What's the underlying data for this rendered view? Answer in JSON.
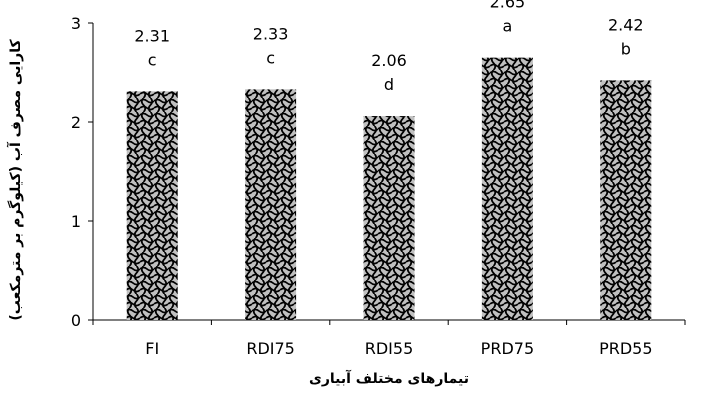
{
  "chart_data": {
    "type": "bar",
    "categories": [
      "FI",
      "RDI75",
      "RDI55",
      "PRD75",
      "PRD55"
    ],
    "values": [
      2.31,
      2.33,
      2.06,
      2.65,
      2.42
    ],
    "data_labels": [
      "2.31",
      "2.33",
      "2.06",
      "2.65",
      "2.42"
    ],
    "group_letters": [
      "c",
      "c",
      "d",
      "a",
      "b"
    ],
    "title": "",
    "xlabel": "تیمارهای مختلف آبیاری",
    "ylabel": "کارایی مصرف آب (کیلوگرم بر مترمکعب)",
    "ylim": [
      0,
      3
    ],
    "yticks": [
      "0",
      "1",
      "2",
      "3"
    ],
    "grid": false,
    "legend": "none",
    "bar_fill": "#c0c0c0",
    "bar_pattern": "#000000"
  }
}
